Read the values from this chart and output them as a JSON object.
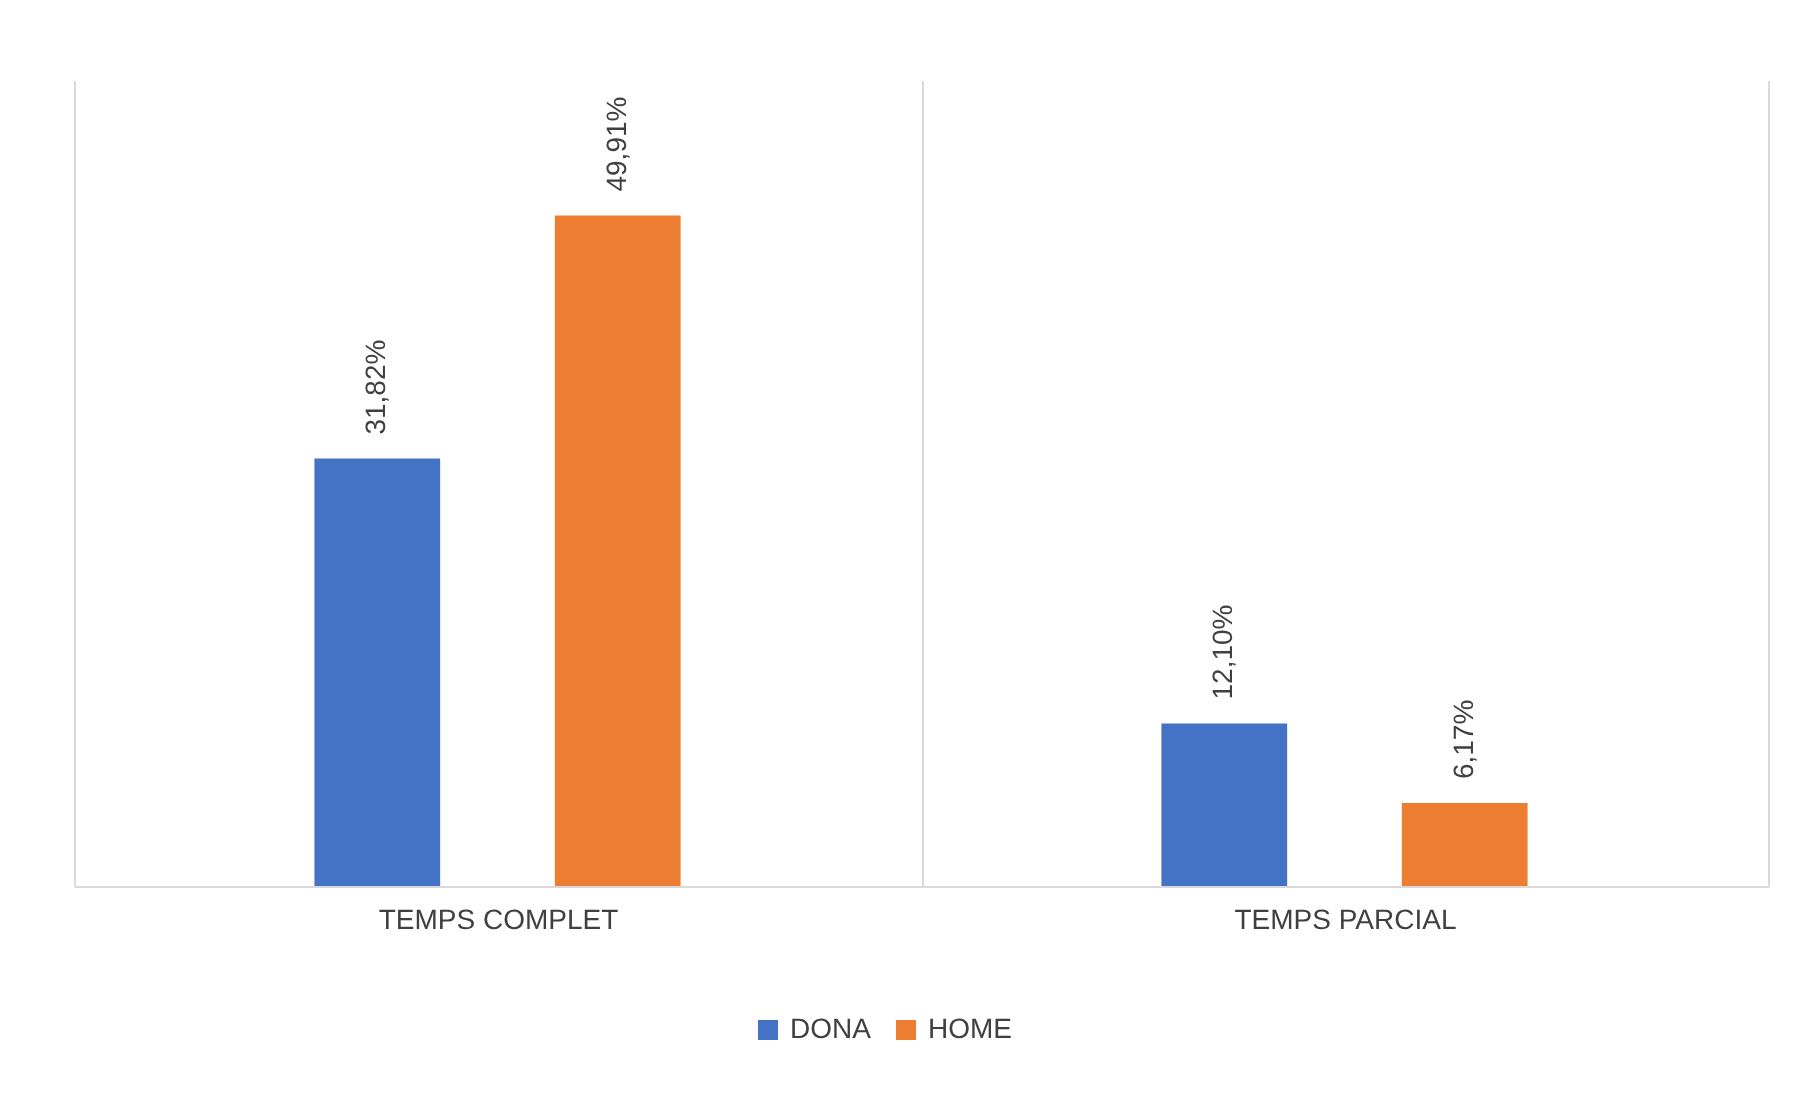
{
  "chart_data": {
    "type": "bar",
    "categories": [
      "TEMPS COMPLET",
      "TEMPS PARCIAL"
    ],
    "series": [
      {
        "name": "DONA",
        "color": "#4472c4",
        "values": [
          31.82,
          12.1
        ],
        "value_labels": [
          "31,82%",
          "12,10%"
        ]
      },
      {
        "name": "HOME",
        "color": "#ed7d31",
        "values": [
          49.91,
          6.17
        ],
        "value_labels": [
          "49,91%",
          "6,17%"
        ]
      }
    ],
    "ylim": [
      0,
      60
    ],
    "grid": "x",
    "legend": "bottom",
    "tick_labels": "x"
  }
}
